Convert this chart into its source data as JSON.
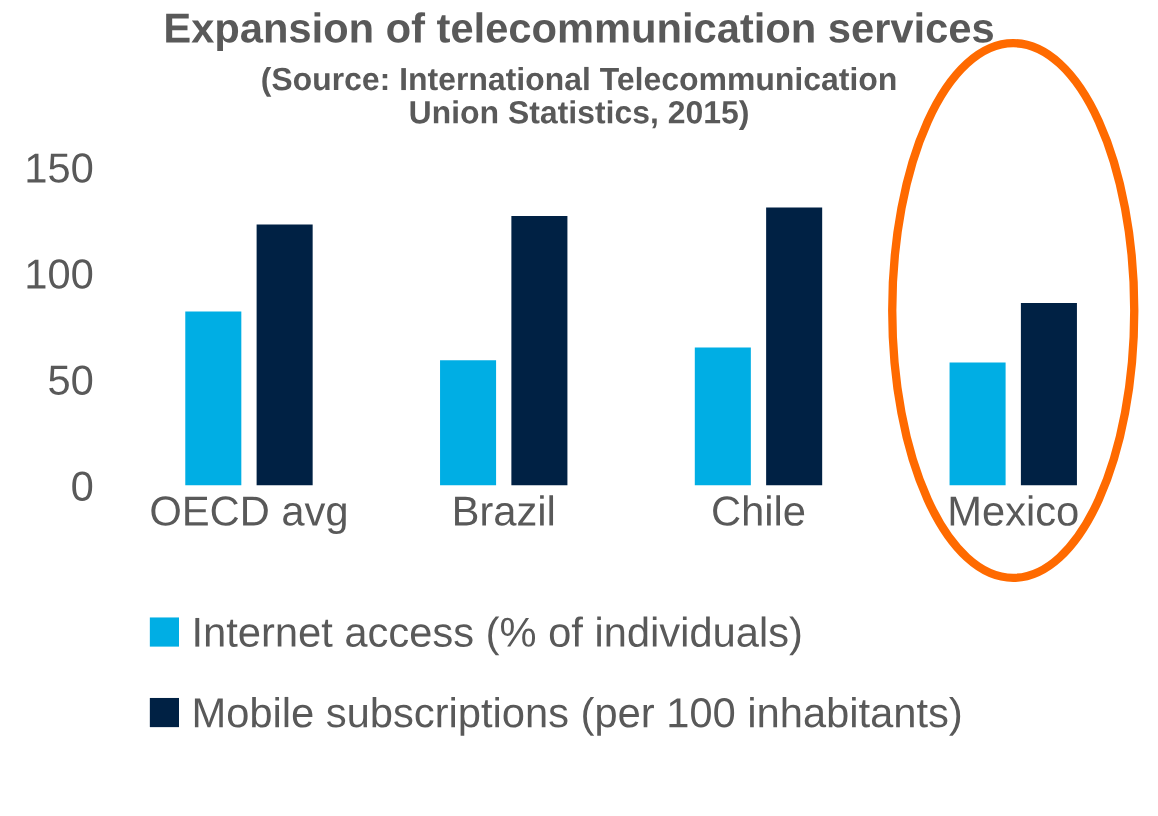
{
  "chart_data": {
    "type": "bar",
    "title": "Expansion of telecommunication services",
    "subtitle": "(Source: International Telecommunication\nUnion Statistics, 2015)",
    "categories": [
      "OECD avg",
      "Brazil",
      "Chile",
      "Mexico"
    ],
    "series": [
      {
        "name": "Internet access (% of individuals)",
        "color": "#00aee4",
        "values": [
          82,
          59,
          65,
          58
        ]
      },
      {
        "name": "Mobile subscriptions (per 100 inhabitants)",
        "color": "#002144",
        "values": [
          123,
          127,
          131,
          86
        ]
      }
    ],
    "ylim": [
      0,
      150
    ],
    "yticks": [
      0,
      50,
      100,
      150
    ],
    "grid": false,
    "legend": "bottom"
  }
}
